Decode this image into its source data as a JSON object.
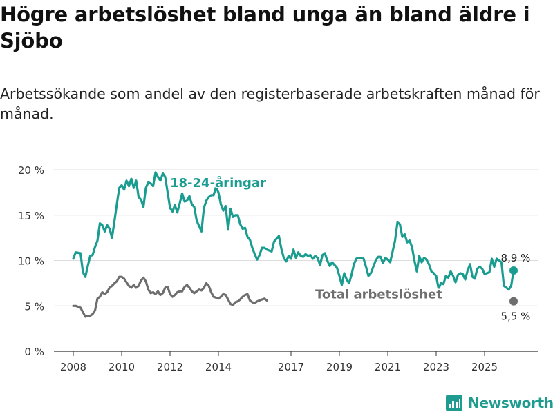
{
  "title": "Högre arbetslöshet bland unga än bland äldre i Sjöbo",
  "subtitle": "Arbetssökande som andel av den registerbaserade arbetskraften månad för månad.",
  "brand": {
    "name": "Newsworthy",
    "color": "#1f9c90",
    "icon": "bar-chart-icon"
  },
  "chart_data": {
    "type": "line",
    "x_unit": "year",
    "ylim": [
      0,
      20
    ],
    "y_ticks": [
      {
        "value": 0,
        "label": "0 %"
      },
      {
        "value": 5,
        "label": "5 %"
      },
      {
        "value": 10,
        "label": "10 %"
      },
      {
        "value": 15,
        "label": "15 %"
      },
      {
        "value": 20,
        "label": "20 %"
      }
    ],
    "x_ticks": [
      {
        "value": 2008,
        "label": "2008"
      },
      {
        "value": 2010,
        "label": "2010"
      },
      {
        "value": 2012,
        "label": "2012"
      },
      {
        "value": 2014,
        "label": "2014"
      },
      {
        "value": 2017,
        "label": "2017"
      },
      {
        "value": 2019,
        "label": "2019"
      },
      {
        "value": 2021,
        "label": "2021"
      },
      {
        "value": 2023,
        "label": "2023"
      },
      {
        "value": 2025,
        "label": "2025"
      }
    ],
    "grid": true,
    "series": [
      {
        "name": "18-24-åringar",
        "color": "#1a9d90",
        "end_label": "8,9 %",
        "points": [
          [
            2008.0,
            10.2
          ],
          [
            2008.1,
            10.9
          ],
          [
            2008.3,
            10.8
          ],
          [
            2008.4,
            8.7
          ],
          [
            2008.5,
            8.2
          ],
          [
            2008.6,
            9.4
          ],
          [
            2008.7,
            10.5
          ],
          [
            2008.8,
            10.6
          ],
          [
            2008.9,
            11.5
          ],
          [
            2009.0,
            12.2
          ],
          [
            2009.1,
            14.1
          ],
          [
            2009.2,
            13.9
          ],
          [
            2009.3,
            13.2
          ],
          [
            2009.4,
            13.9
          ],
          [
            2009.5,
            13.5
          ],
          [
            2009.6,
            12.5
          ],
          [
            2009.7,
            14.3
          ],
          [
            2009.8,
            16.2
          ],
          [
            2009.9,
            18.0
          ],
          [
            2010.0,
            18.3
          ],
          [
            2010.1,
            17.8
          ],
          [
            2010.2,
            18.8
          ],
          [
            2010.3,
            18.2
          ],
          [
            2010.4,
            19.0
          ],
          [
            2010.5,
            18.0
          ],
          [
            2010.6,
            18.8
          ],
          [
            2010.7,
            17.0
          ],
          [
            2010.8,
            16.7
          ],
          [
            2010.9,
            15.9
          ],
          [
            2011.0,
            18.0
          ],
          [
            2011.1,
            18.6
          ],
          [
            2011.2,
            18.5
          ],
          [
            2011.3,
            18.2
          ],
          [
            2011.4,
            19.7
          ],
          [
            2011.5,
            19.2
          ],
          [
            2011.6,
            18.8
          ],
          [
            2011.7,
            19.6
          ],
          [
            2011.8,
            19.2
          ],
          [
            2011.9,
            17.5
          ],
          [
            2012.0,
            15.8
          ],
          [
            2012.1,
            15.4
          ],
          [
            2012.2,
            16.1
          ],
          [
            2012.3,
            15.3
          ],
          [
            2012.4,
            16.3
          ],
          [
            2012.5,
            17.4
          ],
          [
            2012.6,
            16.5
          ],
          [
            2012.7,
            16.6
          ],
          [
            2012.8,
            17.1
          ],
          [
            2012.9,
            16.2
          ],
          [
            2013.0,
            15.9
          ],
          [
            2013.1,
            14.4
          ],
          [
            2013.2,
            13.8
          ],
          [
            2013.3,
            13.2
          ],
          [
            2013.4,
            15.8
          ],
          [
            2013.5,
            16.6
          ],
          [
            2013.6,
            17.0
          ],
          [
            2013.7,
            17.2
          ],
          [
            2013.8,
            17.2
          ],
          [
            2013.9,
            18.1
          ],
          [
            2014.0,
            17.5
          ],
          [
            2014.1,
            16.2
          ],
          [
            2014.2,
            15.5
          ],
          [
            2014.3,
            16.0
          ],
          [
            2014.4,
            13.4
          ],
          [
            2014.5,
            15.7
          ],
          [
            2014.6,
            14.8
          ],
          [
            2014.7,
            15.0
          ],
          [
            2014.8,
            15.0
          ],
          [
            2014.9,
            14.0
          ],
          [
            2015.0,
            13.5
          ],
          [
            2015.1,
            13.6
          ],
          [
            2015.2,
            12.6
          ],
          [
            2015.3,
            12.3
          ],
          [
            2015.4,
            11.4
          ],
          [
            2015.5,
            10.7
          ],
          [
            2015.6,
            10.1
          ],
          [
            2015.7,
            10.6
          ],
          [
            2015.8,
            11.4
          ],
          [
            2015.9,
            11.4
          ],
          [
            2016.0,
            11.2
          ],
          [
            2016.1,
            11.1
          ],
          [
            2016.2,
            11.0
          ],
          [
            2016.3,
            12.1
          ],
          [
            2016.4,
            12.4
          ],
          [
            2016.5,
            12.7
          ],
          [
            2016.6,
            11.3
          ],
          [
            2016.7,
            10.3
          ],
          [
            2016.8,
            9.9
          ],
          [
            2016.9,
            10.5
          ],
          [
            2017.0,
            10.2
          ],
          [
            2017.1,
            11.2
          ],
          [
            2017.2,
            10.3
          ],
          [
            2017.3,
            10.9
          ],
          [
            2017.4,
            10.5
          ],
          [
            2017.5,
            10.4
          ],
          [
            2017.6,
            10.7
          ],
          [
            2017.7,
            10.5
          ],
          [
            2017.8,
            10.6
          ],
          [
            2017.9,
            10.2
          ],
          [
            2018.0,
            10.5
          ],
          [
            2018.1,
            10.3
          ],
          [
            2018.2,
            9.5
          ],
          [
            2018.3,
            10.6
          ],
          [
            2018.4,
            10.8
          ],
          [
            2018.5,
            10.0
          ],
          [
            2018.6,
            9.4
          ],
          [
            2018.7,
            9.8
          ],
          [
            2018.8,
            9.5
          ],
          [
            2018.9,
            9.2
          ],
          [
            2019.0,
            8.3
          ],
          [
            2019.1,
            7.3
          ],
          [
            2019.2,
            8.6
          ],
          [
            2019.3,
            7.9
          ],
          [
            2019.4,
            7.5
          ],
          [
            2019.5,
            8.4
          ],
          [
            2019.6,
            9.6
          ],
          [
            2019.7,
            10.2
          ],
          [
            2019.8,
            10.3
          ],
          [
            2019.9,
            10.3
          ],
          [
            2020.0,
            10.2
          ],
          [
            2020.1,
            9.3
          ],
          [
            2020.2,
            8.3
          ],
          [
            2020.3,
            8.6
          ],
          [
            2020.4,
            9.3
          ],
          [
            2020.5,
            10.0
          ],
          [
            2020.6,
            10.4
          ],
          [
            2020.7,
            10.4
          ],
          [
            2020.8,
            9.7
          ],
          [
            2020.9,
            10.3
          ],
          [
            2021.0,
            10.1
          ],
          [
            2021.1,
            9.8
          ],
          [
            2021.2,
            11.0
          ],
          [
            2021.3,
            12.2
          ],
          [
            2021.4,
            14.2
          ],
          [
            2021.5,
            14.0
          ],
          [
            2021.6,
            12.6
          ],
          [
            2021.7,
            12.9
          ],
          [
            2021.8,
            12.0
          ],
          [
            2021.9,
            12.2
          ],
          [
            2022.0,
            11.5
          ],
          [
            2022.1,
            10.0
          ],
          [
            2022.2,
            8.8
          ],
          [
            2022.3,
            10.5
          ],
          [
            2022.4,
            9.8
          ],
          [
            2022.5,
            10.3
          ],
          [
            2022.6,
            10.1
          ],
          [
            2022.7,
            9.6
          ],
          [
            2022.8,
            8.8
          ],
          [
            2022.9,
            8.6
          ],
          [
            2023.0,
            8.3
          ],
          [
            2023.1,
            6.9
          ],
          [
            2023.2,
            7.5
          ],
          [
            2023.3,
            7.4
          ],
          [
            2023.4,
            8.3
          ],
          [
            2023.5,
            8.1
          ],
          [
            2023.6,
            8.8
          ],
          [
            2023.7,
            8.3
          ],
          [
            2023.8,
            7.6
          ],
          [
            2023.9,
            8.4
          ],
          [
            2024.0,
            8.6
          ],
          [
            2024.1,
            8.5
          ],
          [
            2024.2,
            7.9
          ],
          [
            2024.3,
            8.9
          ],
          [
            2024.4,
            9.6
          ],
          [
            2024.5,
            8.2
          ],
          [
            2024.6,
            8.0
          ],
          [
            2024.7,
            9.1
          ],
          [
            2024.8,
            9.3
          ],
          [
            2024.9,
            9.1
          ],
          [
            2025.0,
            8.5
          ],
          [
            2025.1,
            8.6
          ],
          [
            2025.2,
            8.7
          ],
          [
            2025.3,
            10.2
          ],
          [
            2025.4,
            9.3
          ],
          [
            2025.5,
            10.2
          ],
          [
            2025.6,
            10.0
          ],
          [
            2025.7,
            9.8
          ],
          [
            2025.8,
            7.2
          ],
          [
            2025.9,
            7.0
          ],
          [
            2026.0,
            6.8
          ],
          [
            2026.1,
            7.2
          ],
          [
            2026.2,
            8.9
          ]
        ]
      },
      {
        "name": "Total arbetslöshet",
        "color": "#6e6e6e",
        "end_label": "5,5 %",
        "points": [
          [
            2008.0,
            5.0
          ],
          [
            2008.1,
            5.0
          ],
          [
            2008.3,
            4.8
          ],
          [
            2008.4,
            4.3
          ],
          [
            2008.5,
            3.8
          ],
          [
            2008.6,
            3.9
          ],
          [
            2008.7,
            3.9
          ],
          [
            2008.8,
            4.1
          ],
          [
            2008.9,
            4.5
          ],
          [
            2009.0,
            5.8
          ],
          [
            2009.1,
            6.0
          ],
          [
            2009.2,
            6.5
          ],
          [
            2009.3,
            6.3
          ],
          [
            2009.4,
            6.5
          ],
          [
            2009.5,
            7.0
          ],
          [
            2009.6,
            7.2
          ],
          [
            2009.7,
            7.5
          ],
          [
            2009.8,
            7.7
          ],
          [
            2009.9,
            8.2
          ],
          [
            2010.0,
            8.2
          ],
          [
            2010.1,
            8.0
          ],
          [
            2010.2,
            7.6
          ],
          [
            2010.3,
            7.2
          ],
          [
            2010.4,
            7.0
          ],
          [
            2010.5,
            7.3
          ],
          [
            2010.6,
            7.0
          ],
          [
            2010.7,
            7.2
          ],
          [
            2010.8,
            7.8
          ],
          [
            2010.9,
            8.1
          ],
          [
            2011.0,
            7.7
          ],
          [
            2011.1,
            6.8
          ],
          [
            2011.2,
            6.4
          ],
          [
            2011.3,
            6.5
          ],
          [
            2011.4,
            6.3
          ],
          [
            2011.5,
            6.6
          ],
          [
            2011.6,
            6.2
          ],
          [
            2011.7,
            6.4
          ],
          [
            2011.8,
            7.0
          ],
          [
            2011.9,
            7.1
          ],
          [
            2012.0,
            6.3
          ],
          [
            2012.1,
            6.0
          ],
          [
            2012.2,
            6.2
          ],
          [
            2012.3,
            6.5
          ],
          [
            2012.4,
            6.6
          ],
          [
            2012.5,
            6.6
          ],
          [
            2012.6,
            7.1
          ],
          [
            2012.7,
            7.3
          ],
          [
            2012.8,
            7.0
          ],
          [
            2012.9,
            6.6
          ],
          [
            2013.0,
            6.4
          ],
          [
            2013.1,
            6.6
          ],
          [
            2013.2,
            6.8
          ],
          [
            2013.3,
            6.7
          ],
          [
            2013.4,
            7.0
          ],
          [
            2013.5,
            7.5
          ],
          [
            2013.6,
            7.2
          ],
          [
            2013.7,
            6.5
          ],
          [
            2013.8,
            6.0
          ],
          [
            2013.9,
            5.9
          ],
          [
            2014.0,
            5.8
          ],
          [
            2014.1,
            6.0
          ],
          [
            2014.2,
            6.3
          ],
          [
            2014.3,
            6.2
          ],
          [
            2014.4,
            5.7
          ],
          [
            2014.5,
            5.2
          ],
          [
            2014.6,
            5.1
          ],
          [
            2014.7,
            5.4
          ],
          [
            2014.8,
            5.5
          ],
          [
            2014.9,
            5.7
          ],
          [
            2015.0,
            6.0
          ],
          [
            2015.1,
            6.2
          ],
          [
            2015.2,
            6.3
          ],
          [
            2015.3,
            5.6
          ],
          [
            2015.4,
            5.4
          ],
          [
            2015.5,
            5.3
          ],
          [
            2015.6,
            5.5
          ],
          [
            2015.7,
            5.6
          ],
          [
            2015.8,
            5.7
          ],
          [
            2015.9,
            5.8
          ],
          [
            2016.0,
            5.6
          ]
        ]
      }
    ],
    "annotations": [
      {
        "text": "18-24-åringar",
        "series": "18-24-åringar",
        "at": [
          2012.0,
          18.1
        ]
      },
      {
        "text": "Total arbetslöshet",
        "series": "Total arbetslöshet",
        "at": [
          2018.0,
          5.8
        ]
      }
    ]
  }
}
